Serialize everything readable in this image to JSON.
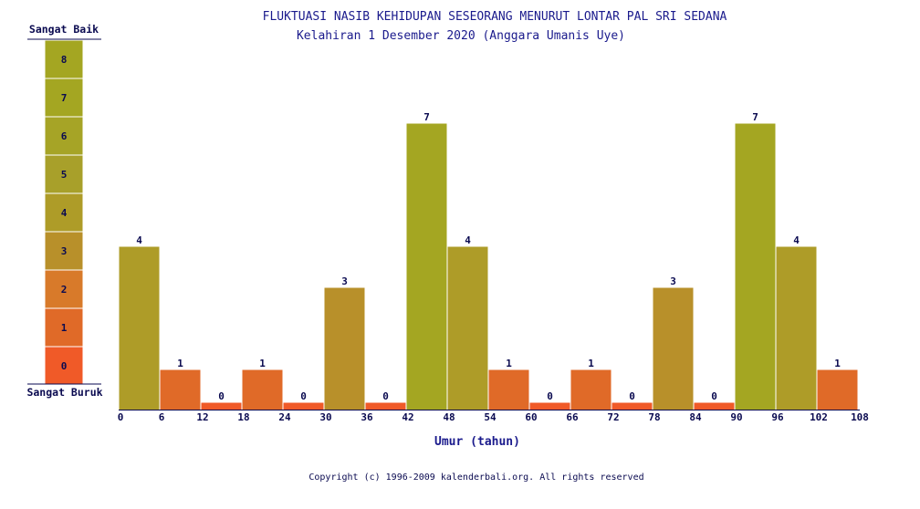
{
  "header": {
    "title": "FLUKTUASI NASIB KEHIDUPAN SESEORANG MENURUT LONTAR PAL SRI SEDANA",
    "subtitle": "Kelahiran 1 Desember 2020 (Anggara Umanis Uye)"
  },
  "scale": {
    "top_label": "Sangat Baik",
    "bottom_label": "Sangat Buruk",
    "levels": [
      "8",
      "7",
      "6",
      "5",
      "4",
      "3",
      "2",
      "1",
      "0"
    ]
  },
  "colors": {
    "0": "#f05a28",
    "1": "#e06a28",
    "2": "#d87a2a",
    "3": "#b8902a",
    "4": "#ae9c28",
    "5": "#a8a02a",
    "6": "#a6a426",
    "7": "#a4a622",
    "8": "#a4a622"
  },
  "chart_data": {
    "type": "bar",
    "title": "FLUKTUASI NASIB KEHIDUPAN SESEORANG MENURUT LONTAR PAL SRI SEDANA",
    "subtitle": "Kelahiran 1 Desember 2020 (Anggara Umanis Uye)",
    "xlabel": "Umur (tahun)",
    "ylabel": "",
    "x_ticks": [
      "0",
      "6",
      "12",
      "18",
      "24",
      "30",
      "36",
      "42",
      "48",
      "54",
      "60",
      "66",
      "72",
      "78",
      "84",
      "90",
      "96",
      "102",
      "108"
    ],
    "bin_width": 6,
    "values": [
      4,
      1,
      0,
      1,
      0,
      3,
      0,
      7,
      4,
      1,
      0,
      1,
      0,
      3,
      0,
      7,
      4,
      1
    ],
    "ylim": [
      0,
      8
    ]
  },
  "footer": {
    "copyright": "Copyright (c) 1996-2009 kalenderbali.org. All rights reserved"
  }
}
